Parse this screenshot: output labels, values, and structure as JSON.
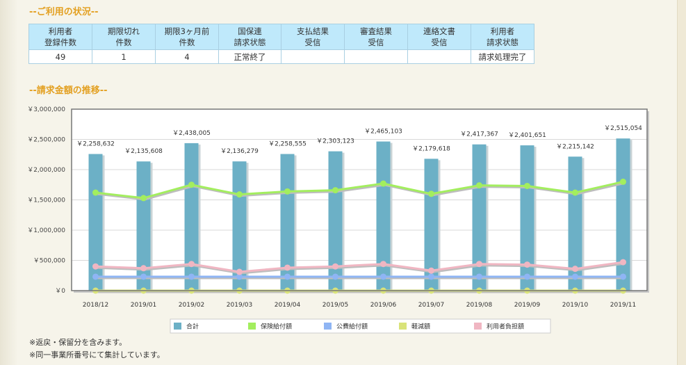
{
  "sections": {
    "usage_title": "--ご利用の状況--",
    "trend_title": "--請求金額の推移--"
  },
  "status_table": {
    "headers": [
      [
        "利用者",
        "登録件数"
      ],
      [
        "期限切れ",
        "件数"
      ],
      [
        "期限3ヶ月前",
        "件数"
      ],
      [
        "国保連",
        "請求状態"
      ],
      [
        "支払結果",
        "受信"
      ],
      [
        "審査結果",
        "受信"
      ],
      [
        "連絡文書",
        "受信"
      ],
      [
        "利用者",
        "請求状態"
      ]
    ],
    "values": [
      "49",
      "1",
      "4",
      "正常終了",
      "",
      "",
      "",
      "請求処理完了"
    ]
  },
  "chart_data": {
    "type": "bar+line",
    "categories": [
      "2018/12",
      "2019/01",
      "2019/02",
      "2019/03",
      "2019/04",
      "2019/05",
      "2019/06",
      "2019/07",
      "2019/08",
      "2019/09",
      "2019/10",
      "2019/11"
    ],
    "ylim": [
      0,
      3000000
    ],
    "yticks": [
      0,
      500000,
      1000000,
      1500000,
      2000000,
      2500000,
      3000000
    ],
    "ytick_labels": [
      "￥0",
      "￥500,000",
      "￥1,000,000",
      "￥1,500,000",
      "￥2,000,000",
      "￥2,500,000",
      "￥3,000,000"
    ],
    "grid": true,
    "legend_position": "bottom",
    "bar_series": {
      "name": "合計",
      "color": "#6cb0c6",
      "values": [
        2258632,
        2135608,
        2438005,
        2136279,
        2258555,
        2303123,
        2465103,
        2179618,
        2417367,
        2401651,
        2215142,
        2515054
      ],
      "labels": [
        "￥2,258,632",
        "￥2,135,608",
        "￥2,438,005",
        "￥2,136,279",
        "￥2,258,555",
        "￥2,303,123",
        "￥2,465,103",
        "￥2,179,618",
        "￥2,417,367",
        "￥2,401,651",
        "￥2,215,142",
        "￥2,515,054"
      ]
    },
    "line_series": [
      {
        "name": "保険給付額",
        "color": "#a3ee5e",
        "values": [
          1620000,
          1530000,
          1750000,
          1590000,
          1640000,
          1660000,
          1770000,
          1600000,
          1740000,
          1730000,
          1620000,
          1800000
        ]
      },
      {
        "name": "公費給付額",
        "color": "#8fb5f4",
        "values": [
          230000,
          230000,
          230000,
          230000,
          230000,
          230000,
          230000,
          230000,
          230000,
          230000,
          230000,
          230000
        ]
      },
      {
        "name": "軽減額",
        "color": "#d9e37a",
        "values": [
          0,
          0,
          0,
          0,
          0,
          0,
          0,
          0,
          0,
          0,
          0,
          0
        ]
      },
      {
        "name": "利用者負担額",
        "color": "#f0b6c2",
        "values": [
          400000,
          370000,
          440000,
          310000,
          380000,
          400000,
          440000,
          330000,
          440000,
          430000,
          360000,
          470000
        ]
      }
    ]
  },
  "notes": [
    "※返戻・保留分を含みます。",
    "※同一事業所番号にて集計しています。"
  ]
}
